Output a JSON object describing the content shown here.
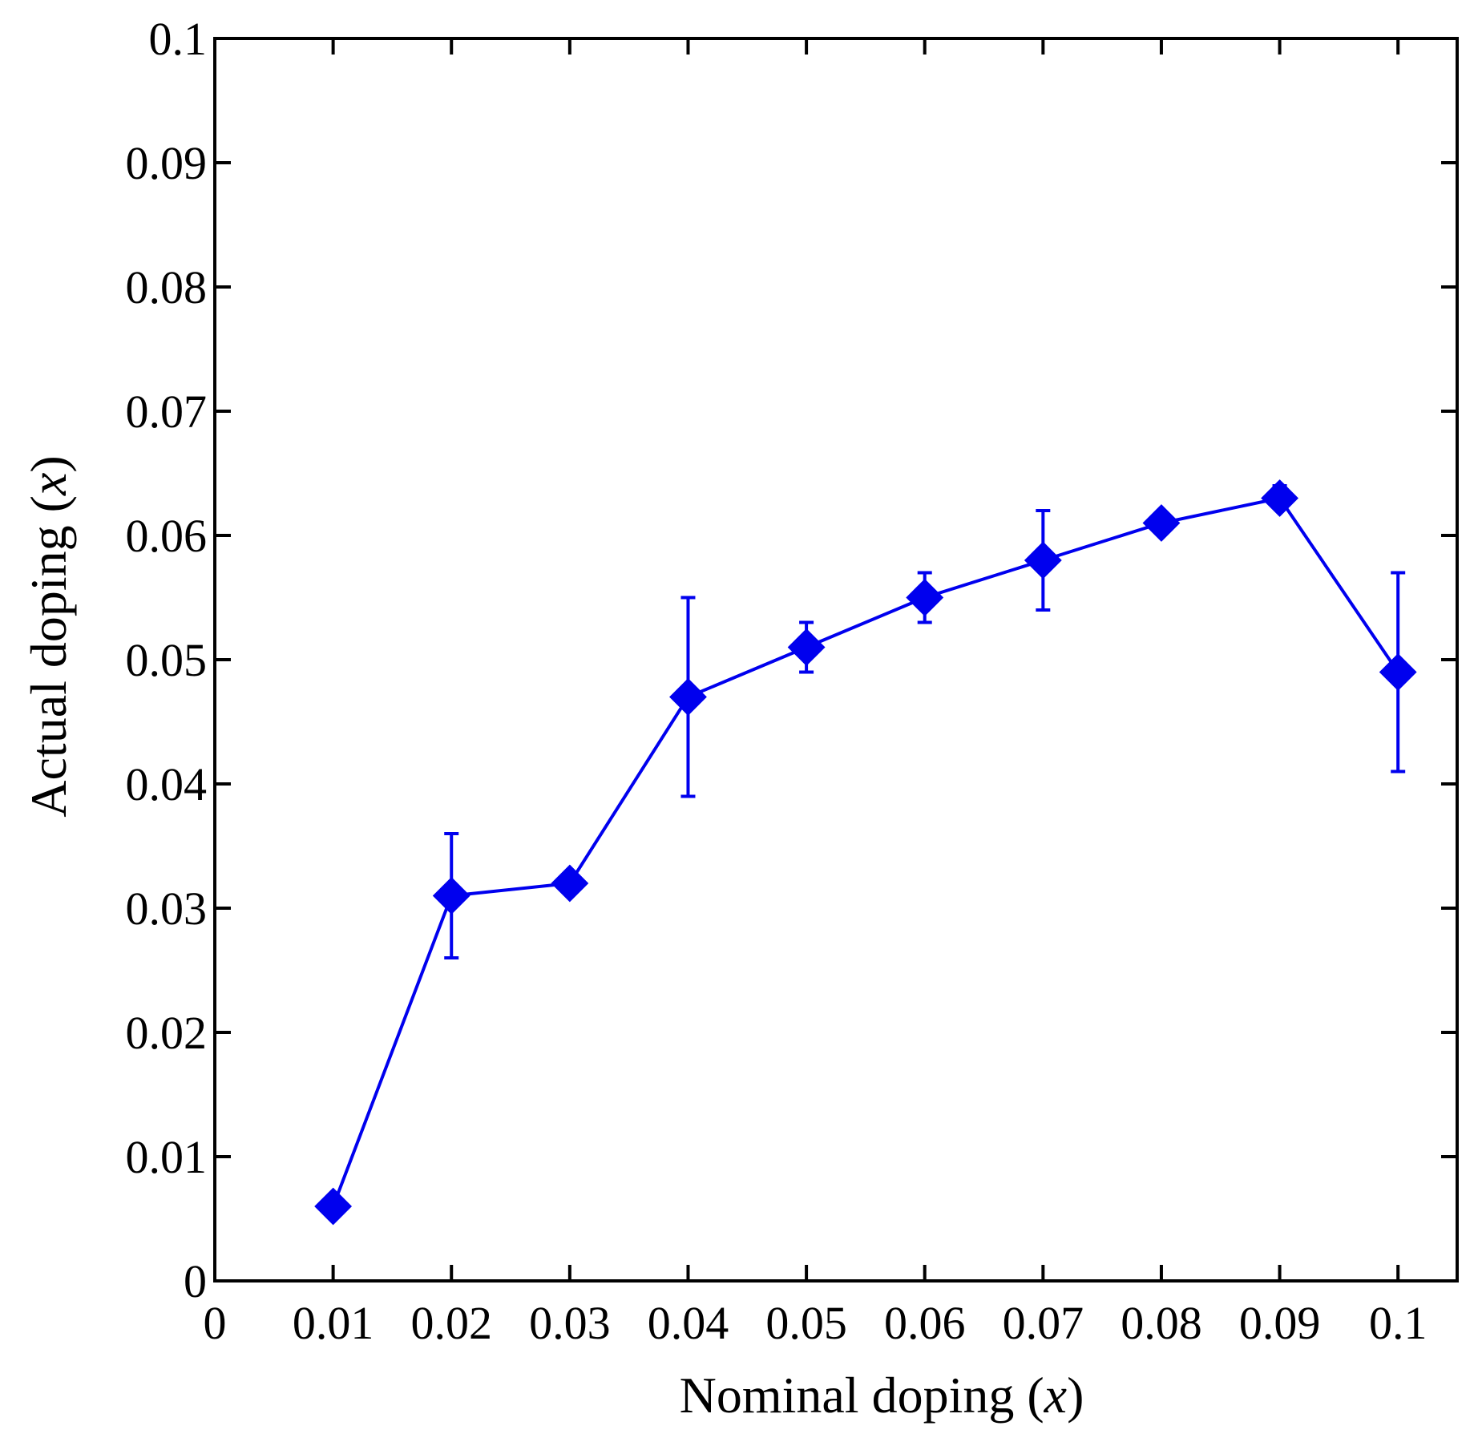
{
  "chart_data": {
    "type": "line",
    "xlabel": {
      "text": "Nominal doping (",
      "var": "x",
      "close": ")"
    },
    "ylabel": {
      "text": "Actual doping (",
      "var": "x",
      "close": ")"
    },
    "xlim": [
      0,
      0.105
    ],
    "ylim": [
      0,
      0.1
    ],
    "xticks": [
      {
        "value": 0,
        "label": "0"
      },
      {
        "value": 0.01,
        "label": "0.01"
      },
      {
        "value": 0.02,
        "label": "0.02"
      },
      {
        "value": 0.03,
        "label": "0.03"
      },
      {
        "value": 0.04,
        "label": "0.04"
      },
      {
        "value": 0.05,
        "label": "0.05"
      },
      {
        "value": 0.06,
        "label": "0.06"
      },
      {
        "value": 0.07,
        "label": "0.07"
      },
      {
        "value": 0.08,
        "label": "0.08"
      },
      {
        "value": 0.09,
        "label": "0.09"
      },
      {
        "value": 0.1,
        "label": "0.1"
      }
    ],
    "yticks": [
      {
        "value": 0,
        "label": "0"
      },
      {
        "value": 0.01,
        "label": "0.01"
      },
      {
        "value": 0.02,
        "label": "0.02"
      },
      {
        "value": 0.03,
        "label": "0.03"
      },
      {
        "value": 0.04,
        "label": "0.04"
      },
      {
        "value": 0.05,
        "label": "0.05"
      },
      {
        "value": 0.06,
        "label": "0.06"
      },
      {
        "value": 0.07,
        "label": "0.07"
      },
      {
        "value": 0.08,
        "label": "0.08"
      },
      {
        "value": 0.09,
        "label": "0.09"
      },
      {
        "value": 0.1,
        "label": "0.1"
      }
    ],
    "grid": false,
    "series": [
      {
        "color": "#0000ee",
        "marker": "diamond",
        "points": [
          {
            "x": 0.01,
            "y": 0.006,
            "err_low": 0.0055,
            "err_high": 0.0065
          },
          {
            "x": 0.02,
            "y": 0.031,
            "err_low": 0.026,
            "err_high": 0.036
          },
          {
            "x": 0.03,
            "y": 0.032,
            "err_low": 0.0315,
            "err_high": 0.0325
          },
          {
            "x": 0.04,
            "y": 0.047,
            "err_low": 0.039,
            "err_high": 0.055
          },
          {
            "x": 0.05,
            "y": 0.051,
            "err_low": 0.049,
            "err_high": 0.053
          },
          {
            "x": 0.06,
            "y": 0.055,
            "err_low": 0.053,
            "err_high": 0.057
          },
          {
            "x": 0.07,
            "y": 0.058,
            "err_low": 0.054,
            "err_high": 0.062
          },
          {
            "x": 0.08,
            "y": 0.061,
            "err_low": 0.0605,
            "err_high": 0.0615
          },
          {
            "x": 0.09,
            "y": 0.063,
            "err_low": 0.0625,
            "err_high": 0.064
          },
          {
            "x": 0.1,
            "y": 0.049,
            "err_low": 0.041,
            "err_high": 0.057
          }
        ]
      }
    ]
  }
}
